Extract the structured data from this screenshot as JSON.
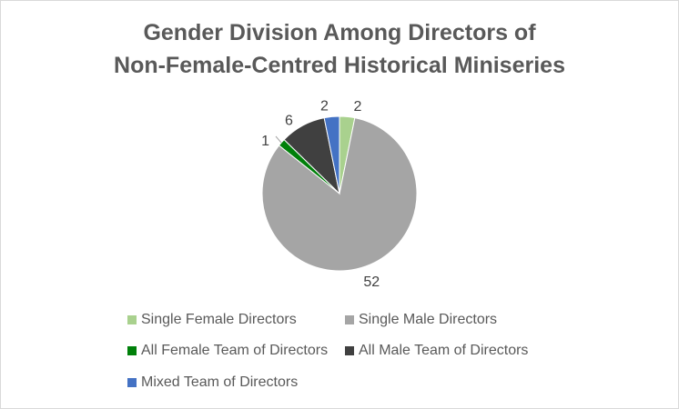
{
  "chart_data": {
    "type": "pie",
    "title_line1": "Gender Division Among Directors of",
    "title_line2": "Non-Female-Centred Historical Miniseries",
    "slices": [
      {
        "label": "Single Female Directors",
        "value": 2,
        "color": "#a9d18e"
      },
      {
        "label": "Single Male Directors",
        "value": 52,
        "color": "#a5a5a5"
      },
      {
        "label": "All Female Team of Directors",
        "value": 1,
        "color": "#00800a"
      },
      {
        "label": "All Male Team of Directors",
        "value": 6,
        "color": "#404040"
      },
      {
        "label": "Mixed Team of Directors",
        "value": 2,
        "color": "#4472c4"
      }
    ],
    "legend_position": "bottom"
  }
}
